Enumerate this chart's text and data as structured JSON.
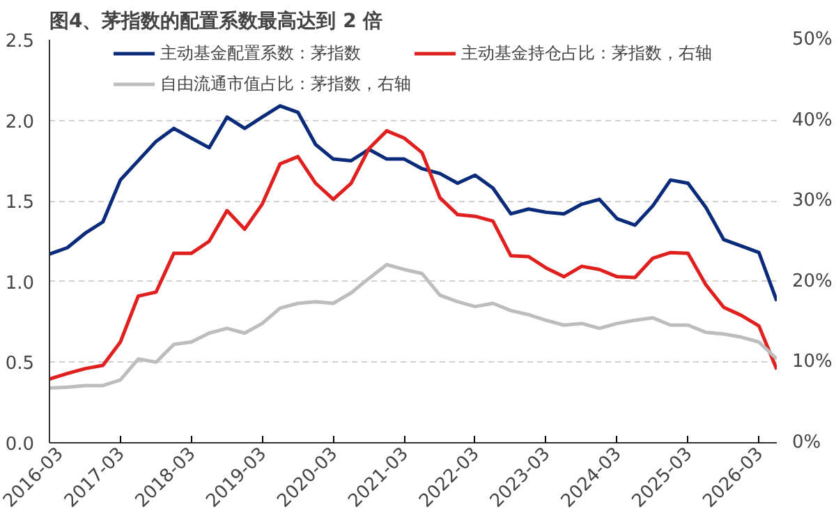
{
  "chart_data": {
    "type": "line",
    "title": "图4、茅指数的配置系数最高达到 2 倍",
    "x": [
      "2016-03",
      "2016-06",
      "2016-09",
      "2016-12",
      "2017-03",
      "2017-06",
      "2017-09",
      "2017-12",
      "2018-03",
      "2018-06",
      "2018-09",
      "2018-12",
      "2019-03",
      "2019-06",
      "2019-09",
      "2019-12",
      "2020-03",
      "2020-06",
      "2020-09",
      "2020-12",
      "2021-03",
      "2021-06",
      "2021-09",
      "2021-12",
      "2022-03",
      "2022-06",
      "2022-09",
      "2022-12",
      "2023-03",
      "2023-06",
      "2023-09",
      "2023-12",
      "2024-03",
      "2024-06",
      "2024-09",
      "2024-12",
      "2025-03",
      "2025-06",
      "2025-09",
      "2025-12",
      "2026-03",
      "2026-06"
    ],
    "series": [
      {
        "name": "主动基金配置系数：茅指数",
        "color": "#0a2a7a",
        "values": [
          1.17,
          1.21,
          1.3,
          1.37,
          1.63,
          1.75,
          1.87,
          1.95,
          1.89,
          1.83,
          2.02,
          1.95,
          2.02,
          2.09,
          2.05,
          1.85,
          1.76,
          1.75,
          1.82,
          1.76,
          1.76,
          1.7,
          1.67,
          1.61,
          1.66,
          1.58,
          1.42,
          1.45,
          1.43,
          1.42,
          1.48,
          1.51,
          1.39,
          1.35,
          1.47,
          1.63,
          1.61,
          1.46,
          1.26,
          1.22,
          1.18,
          0.88
        ]
      },
      {
        "name": "主动基金持仓占比：茅指数，右轴",
        "color": "#e0201e",
        "axis": "y2",
        "values": [
          7.9,
          8.6,
          9.2,
          9.6,
          12.5,
          18.2,
          18.7,
          23.5,
          23.5,
          25.0,
          28.8,
          26.5,
          29.6,
          34.6,
          35.5,
          32.2,
          30.2,
          32.2,
          36.5,
          38.7,
          37.8,
          36.0,
          30.4,
          28.3,
          28.1,
          27.5,
          23.2,
          23.1,
          21.7,
          20.6,
          21.9,
          21.5,
          20.6,
          20.5,
          22.9,
          23.6,
          23.5,
          19.6,
          16.8,
          15.8,
          14.5,
          9.1
        ]
      },
      {
        "name": "自由流通市值占比：茅指数，右轴",
        "color": "#bdbdbd",
        "axis": "y2",
        "values": [
          6.8,
          6.9,
          7.1,
          7.1,
          7.8,
          10.4,
          10.0,
          12.2,
          12.5,
          13.6,
          14.2,
          13.6,
          14.8,
          16.7,
          17.3,
          17.5,
          17.3,
          18.6,
          20.4,
          22.1,
          21.5,
          21.0,
          18.3,
          17.5,
          16.9,
          17.3,
          16.4,
          15.9,
          15.2,
          14.6,
          14.8,
          14.2,
          14.8,
          15.2,
          15.5,
          14.6,
          14.6,
          13.7,
          13.5,
          13.1,
          12.5,
          10.4
        ]
      }
    ],
    "xlim": [
      "2016-03",
      "2026-06"
    ],
    "xticks": [
      "2016-03",
      "2017-03",
      "2018-03",
      "2019-03",
      "2020-03",
      "2021-03",
      "2022-03",
      "2023-03",
      "2024-03",
      "2025-03",
      "2026-03"
    ],
    "ylim": [
      0,
      2.5
    ],
    "yticks": [
      {
        "value": 0,
        "label": "0.0"
      },
      {
        "value": 0.5,
        "label": "0.5"
      },
      {
        "value": 1,
        "label": "1.0"
      },
      {
        "value": 1.5,
        "label": "1.5"
      },
      {
        "value": 2,
        "label": "2.0"
      },
      {
        "value": 2.5,
        "label": "2.5"
      }
    ],
    "y2lim": [
      0,
      50
    ],
    "y2ticks": [
      {
        "value": 0,
        "label": "0%"
      },
      {
        "value": 10,
        "label": "10%"
      },
      {
        "value": 20,
        "label": "20%"
      },
      {
        "value": 30,
        "label": "30%"
      },
      {
        "value": 40,
        "label": "40%"
      },
      {
        "value": 50,
        "label": "50%"
      }
    ],
    "grid": "y",
    "legend": "top",
    "marker": "none",
    "line_style": "solid"
  }
}
